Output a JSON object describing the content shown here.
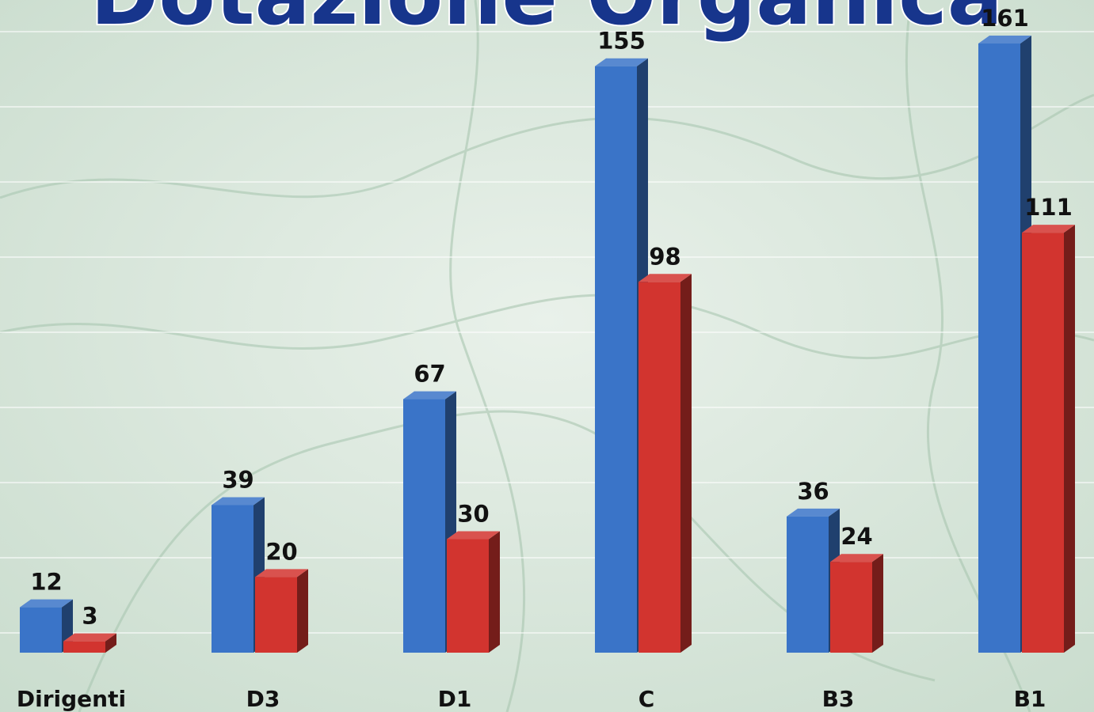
{
  "chart_data": {
    "type": "bar3d",
    "title": "Dotazione Organica",
    "categories": [
      "Dirigenti",
      "D3",
      "D1",
      "C",
      "B3",
      "B1"
    ],
    "series": [
      {
        "color": "#3a74c8",
        "values": [
          12,
          39,
          67,
          155,
          36,
          161
        ]
      },
      {
        "color": "#d2342f",
        "values": [
          3,
          20,
          30,
          98,
          24,
          111
        ]
      }
    ]
  }
}
